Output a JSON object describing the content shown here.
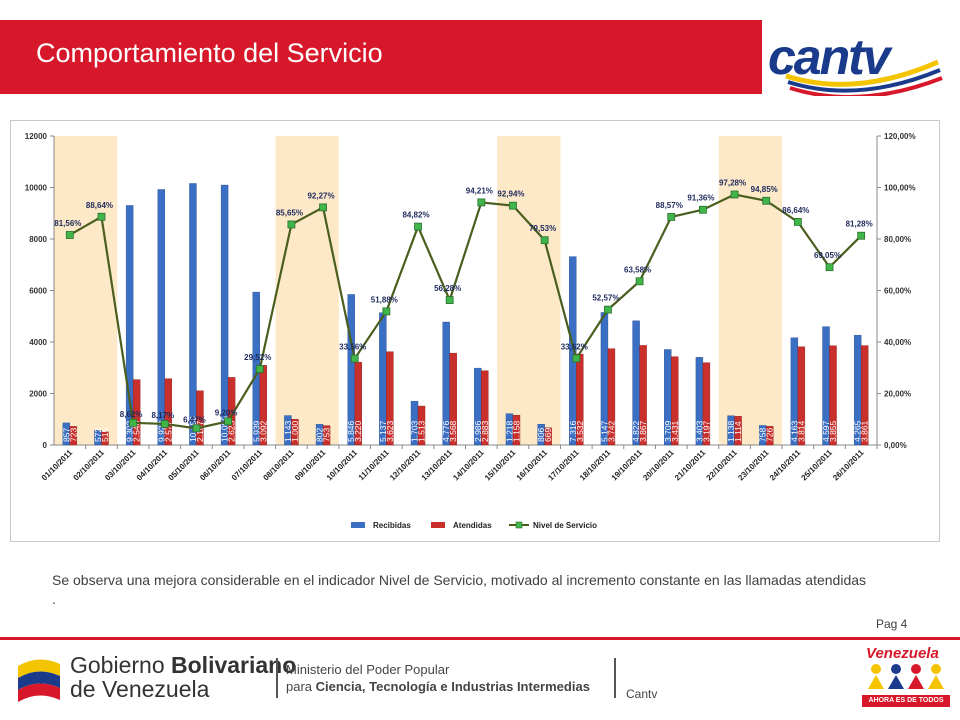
{
  "header": {
    "title": "Comportamiento del Servicio"
  },
  "logo": {
    "text": "cantv"
  },
  "chart_data": {
    "type": "bar",
    "categories": [
      "01/10/2011",
      "02/10/2011",
      "03/10/2011",
      "04/10/2011",
      "05/10/2011",
      "06/10/2011",
      "07/10/2011",
      "08/10/2011",
      "09/10/2011",
      "10/10/2011",
      "11/10/2011",
      "12/10/2011",
      "13/10/2011",
      "14/10/2011",
      "15/10/2011",
      "16/10/2011",
      "17/10/2011",
      "18/10/2011",
      "19/10/2011",
      "20/10/2011",
      "21/10/2011",
      "22/10/2011",
      "23/10/2011",
      "24/10/2011",
      "25/10/2011",
      "26/10/2011"
    ],
    "highlighted_categories": [
      "01/10/2011",
      "02/10/2011",
      "08/10/2011",
      "09/10/2011",
      "15/10/2011",
      "16/10/2011",
      "22/10/2011",
      "23/10/2011"
    ],
    "series": [
      {
        "name": "Recibidas",
        "type": "bar",
        "axis": "left",
        "color": "#3a6fc4",
        "values": [
          857,
          572,
          9302,
          9922,
          10156,
          10095,
          5939,
          1143,
          802,
          5846,
          5137,
          1703,
          4776,
          2986,
          1218,
          806,
          7316,
          5147,
          4822,
          3709,
          3403,
          1138,
          758,
          4163,
          4597,
          4265
        ],
        "labels": [
          "857",
          "572",
          "9.302",
          "9.922",
          "10.156",
          "10.095",
          "5.939",
          "1.143",
          "802",
          "5.846",
          "5.137",
          "1.703",
          "4.776",
          "2.986",
          "1.218",
          "806",
          "7.316",
          "5.147",
          "4.822",
          "3.709",
          "3.403",
          "1.138",
          "758",
          "4.163",
          "4.597",
          "4.265"
        ]
      },
      {
        "name": "Atendidas",
        "type": "bar",
        "axis": "left",
        "color": "#c9302c",
        "values": [
          723,
          515,
          2540,
          2577,
          2107,
          2625,
          3092,
          1000,
          753,
          3220,
          3623,
          1513,
          3568,
          2883,
          1158,
          669,
          3532,
          3742,
          3867,
          3431,
          3197,
          1114,
          726,
          3814,
          3855,
          3861
        ],
        "labels": [
          "723",
          "515",
          "2.540",
          "2.577",
          "2.107",
          "2.625",
          "3.092",
          "1.000",
          "753",
          "3.220",
          "3.623",
          "1.513",
          "3.568",
          "2.883",
          "1.158",
          "669",
          "3.532",
          "3.742",
          "3.867",
          "3.431",
          "3.197",
          "1.114",
          "726",
          "3.814",
          "3.855",
          "3.861"
        ]
      },
      {
        "name": "Nivel de Servicio",
        "type": "line",
        "axis": "right",
        "color": "#4a5e1e",
        "marker_color": "#3fb54a",
        "values": [
          81.56,
          88.64,
          8.62,
          8.17,
          6.47,
          9.2,
          29.52,
          85.65,
          92.27,
          33.56,
          51.88,
          84.82,
          56.28,
          94.21,
          92.94,
          79.53,
          33.62,
          52.57,
          63.58,
          88.57,
          91.36,
          97.28,
          94.85,
          86.64,
          69.05,
          81.28
        ],
        "labels": [
          "81,56%",
          "88,64%",
          "8,62%",
          "8,17%",
          "6,47%",
          "9,20%",
          "29,52%",
          "85,65%",
          "92,27%",
          "33,56%",
          "51,88%",
          "84,82%",
          "56,28%",
          "94,21%",
          "92,94%",
          "79,53%",
          "33,62%",
          "52,57%",
          "63,58%",
          "88,57%",
          "91,36%",
          "97,28%",
          "94,85%",
          "86,64%",
          "69,05%",
          "81,28%"
        ]
      }
    ],
    "ylim": [
      0,
      12000
    ],
    "yticks": [
      "0",
      "2000",
      "4000",
      "6000",
      "8000",
      "10000",
      "12000"
    ],
    "y2lim": [
      0,
      120
    ],
    "y2ticks": [
      "0,00%",
      "20,00%",
      "40,00%",
      "60,00%",
      "80,00%",
      "100,00%",
      "120,00%"
    ],
    "legend": "bottom",
    "grid": false,
    "highlight_color": "#fde9c8"
  },
  "caption": "Se observa una mejora considerable en el indicador Nivel de Servicio, motivado al incremento constante en las llamadas atendidas .",
  "page": "Pag 4",
  "footer": {
    "gob_line1_a": "Gobierno ",
    "gob_line1_b": "Bolivariano",
    "gob_line2": "de Venezuela",
    "ministry_line1": "Ministerio del Poder Popular",
    "ministry_line2_a": "para ",
    "ministry_line2_b": "Ciencia, Tecnología e Industrias Intermedias",
    "cantv": "Cantv",
    "badge_top": "Venezuela",
    "badge_bottom": "AHORA ES DE TODOS"
  }
}
